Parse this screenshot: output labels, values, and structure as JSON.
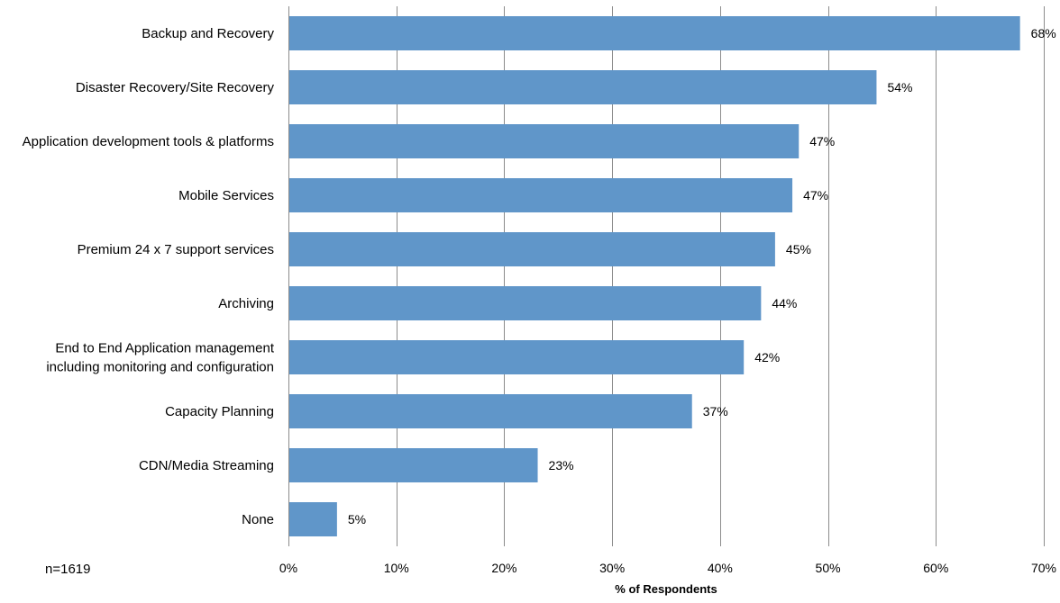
{
  "chart_data": {
    "type": "bar",
    "orientation": "horizontal",
    "title": "",
    "xlabel": "% of Respondents",
    "ylabel": "",
    "xlim": [
      0,
      70
    ],
    "tick_values": [
      0,
      10,
      20,
      30,
      40,
      50,
      60,
      70
    ],
    "tick_labels": [
      "0%",
      "10%",
      "20%",
      "30%",
      "40%",
      "50%",
      "60%",
      "70%"
    ],
    "grid": "vertical",
    "legend": "none",
    "bar_color": "#6096C9",
    "categories": [
      [
        "Backup and Recovery"
      ],
      [
        "Disaster Recovery/Site Recovery"
      ],
      [
        "Application development tools & platforms"
      ],
      [
        "Mobile Services"
      ],
      [
        "Premium 24 x 7 support services"
      ],
      [
        "Archiving"
      ],
      [
        "End to End Application management",
        "including monitoring and configuration"
      ],
      [
        "Capacity Planning"
      ],
      [
        "CDN/Media Streaming"
      ],
      [
        "None"
      ]
    ],
    "values": [
      67.8,
      54.5,
      47.3,
      46.7,
      45.1,
      43.8,
      42.2,
      37.4,
      23.1,
      4.5
    ],
    "data_labels": [
      "68%",
      "54%",
      "47%",
      "47%",
      "45%",
      "44%",
      "42%",
      "37%",
      "23%",
      "5%"
    ]
  },
  "note": "n=1619"
}
